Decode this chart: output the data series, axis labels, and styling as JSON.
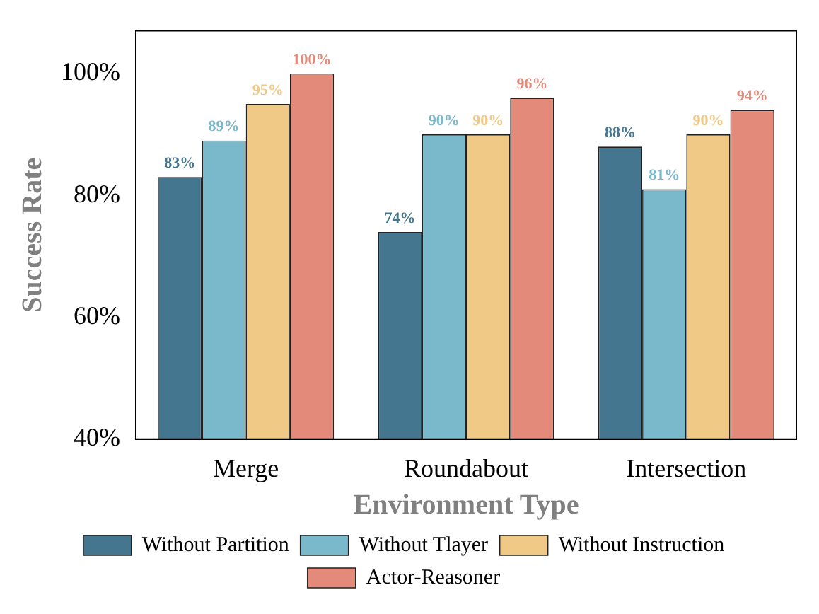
{
  "chart_data": {
    "type": "bar",
    "xlabel": "Environment Type",
    "ylabel": "Success Rate",
    "categories": [
      "Merge",
      "Roundabout",
      "Intersection"
    ],
    "series": [
      {
        "name": "Without Partition",
        "color": "#44778f",
        "values": [
          83,
          74,
          88
        ],
        "value_labels": [
          "83%",
          "74%",
          "88%"
        ]
      },
      {
        "name": "Without Tlayer",
        "color": "#7ab8cc",
        "values": [
          89,
          90,
          81
        ],
        "value_labels": [
          "89%",
          "90%",
          "81%"
        ]
      },
      {
        "name": "Without Instruction",
        "color": "#f0c987",
        "values": [
          95,
          90,
          90
        ],
        "value_labels": [
          "95%",
          "90%",
          "90%"
        ]
      },
      {
        "name": "Actor-Reasoner",
        "color": "#e48a7a",
        "values": [
          100,
          96,
          94
        ],
        "value_labels": [
          "100%",
          "96%",
          "94%"
        ]
      }
    ],
    "ylim": [
      40,
      107
    ],
    "yticks": [
      {
        "value": 40,
        "label": "40%"
      },
      {
        "value": 60,
        "label": "60%"
      },
      {
        "value": 80,
        "label": "80%"
      },
      {
        "value": 100,
        "label": "100%"
      }
    ],
    "grid": false,
    "legend": "bottom"
  }
}
